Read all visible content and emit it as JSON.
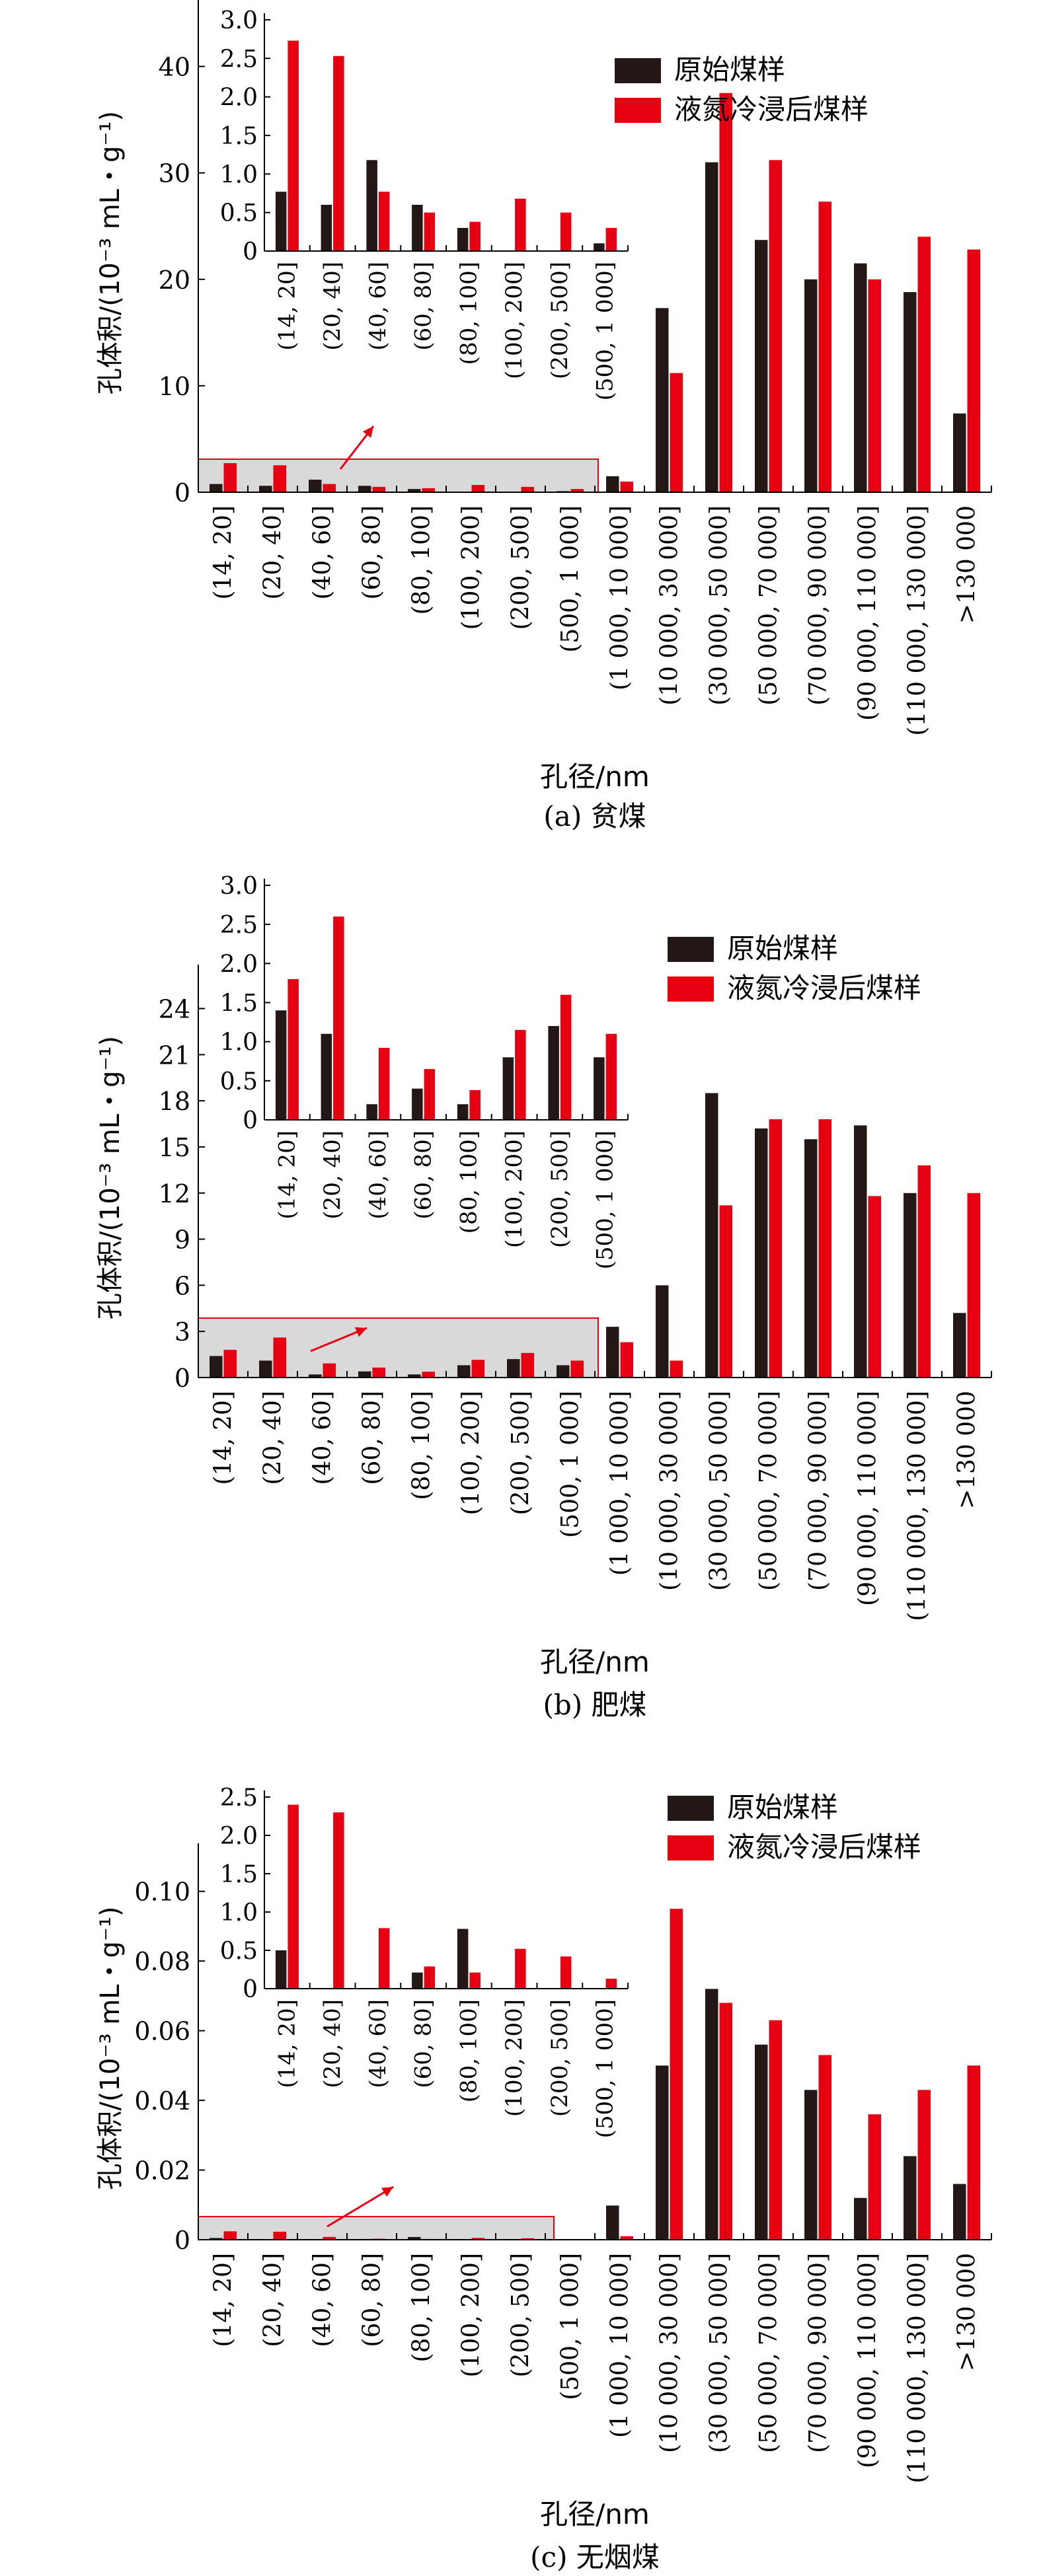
{
  "colors": {
    "original": "#231815",
    "treated": "#e60012",
    "highlight_fill": "#d9d9d9",
    "highlight_stroke": "#e60012",
    "arrow": "#e60012"
  },
  "legend": {
    "original": "原始煤样",
    "treated": "液氮冷浸后煤样"
  },
  "categories": [
    "(14, 20]",
    "(20, 40]",
    "(40, 60]",
    "(60, 80]",
    "(80, 100]",
    "(100, 200]",
    "(200, 500]",
    "(500, 1 000]",
    "(1 000, 10 000]",
    "(10 000, 30 000]",
    "(30 000, 50 000]",
    "(50 000, 70 000]",
    "(70 000, 90 000]",
    "(90 000, 110 000]",
    "(110 000, 130 000]",
    ">130 000"
  ],
  "inset_categories": [
    "(14, 20]",
    "(20, 40]",
    "(40, 60]",
    "(60, 80]",
    "(80, 100]",
    "(100, 200]",
    "(200, 500]",
    "(500, 1 000]"
  ],
  "chart_data": [
    {
      "type": "bar",
      "caption": "(a) 贫煤",
      "xlabel": "孔径/nm",
      "ylabel": "孔体积/(10⁻³ mL・g⁻¹)",
      "ylim": [
        0,
        45
      ],
      "yticks": [
        "0",
        "10",
        "20",
        "30",
        "40"
      ],
      "series": [
        {
          "name": "原始煤样",
          "values": [
            0.77,
            0.6,
            1.18,
            0.6,
            0.3,
            0.0,
            0.0,
            0.1,
            1.5,
            17.3,
            31.0,
            23.7,
            20.0,
            21.5,
            18.8,
            7.4
          ]
        },
        {
          "name": "液氮冷浸后煤样",
          "values": [
            2.73,
            2.53,
            0.77,
            0.5,
            0.38,
            0.68,
            0.5,
            0.3,
            1.0,
            11.2,
            37.5,
            31.2,
            27.3,
            20.0,
            24.0,
            22.8
          ]
        }
      ],
      "inset": {
        "ylim": [
          0,
          3.0
        ],
        "yticks": [
          "0",
          "0.5",
          "1.0",
          "1.5",
          "2.0",
          "2.5",
          "3.0"
        ]
      }
    },
    {
      "type": "bar",
      "caption": "(b) 肥煤",
      "xlabel": "孔径/nm",
      "ylabel": "孔体积/(10⁻³ mL・g⁻¹)",
      "ylim": [
        0,
        26
      ],
      "yticks": [
        "0",
        "3",
        "6",
        "9",
        "12",
        "15",
        "18",
        "21",
        "24"
      ],
      "series": [
        {
          "name": "原始煤样",
          "values": [
            1.4,
            1.1,
            0.2,
            0.4,
            0.2,
            0.8,
            1.2,
            0.8,
            3.3,
            6.0,
            18.5,
            16.2,
            15.5,
            16.4,
            12.0,
            4.2
          ]
        },
        {
          "name": "液氮冷浸后煤样",
          "values": [
            1.8,
            2.6,
            0.92,
            0.65,
            0.38,
            1.15,
            1.6,
            1.1,
            2.3,
            1.1,
            11.2,
            16.8,
            16.8,
            11.8,
            13.8,
            12.0
          ]
        }
      ],
      "inset": {
        "ylim": [
          0,
          3.0
        ],
        "yticks": [
          "0",
          "0.5",
          "1.0",
          "1.5",
          "2.0",
          "2.5",
          "3.0"
        ]
      }
    },
    {
      "type": "bar",
      "caption": "(c) 无烟煤",
      "xlabel": "孔径/nm",
      "ylabel": "孔体积/(10⁻³ mL・g⁻¹)",
      "ylim": [
        0,
        0.11
      ],
      "yticks": [
        "0",
        "0.02",
        "0.04",
        "0.06",
        "0.08",
        "0.10"
      ],
      "series": [
        {
          "name": "原始煤样",
          "values": [
            0.0005,
            0.0,
            0.0,
            0.00021,
            0.00078,
            0.0,
            0.0,
            0.0,
            0.0098,
            0.05,
            0.072,
            0.056,
            0.043,
            0.012,
            0.024,
            0.016
          ]
        },
        {
          "name": "液氮冷浸后煤样",
          "values": [
            0.0024,
            0.0023,
            0.00079,
            0.00029,
            0.00021,
            0.00052,
            0.00042,
            0.00013,
            0.001,
            0.095,
            0.068,
            0.063,
            0.053,
            0.036,
            0.043,
            0.05
          ]
        }
      ],
      "inset": {
        "ylim": [
          0,
          2.5
        ],
        "scale_in_inset": 1000,
        "yticks": [
          "0",
          "0.5",
          "1.0",
          "1.5",
          "2.0",
          "2.5"
        ]
      }
    }
  ]
}
